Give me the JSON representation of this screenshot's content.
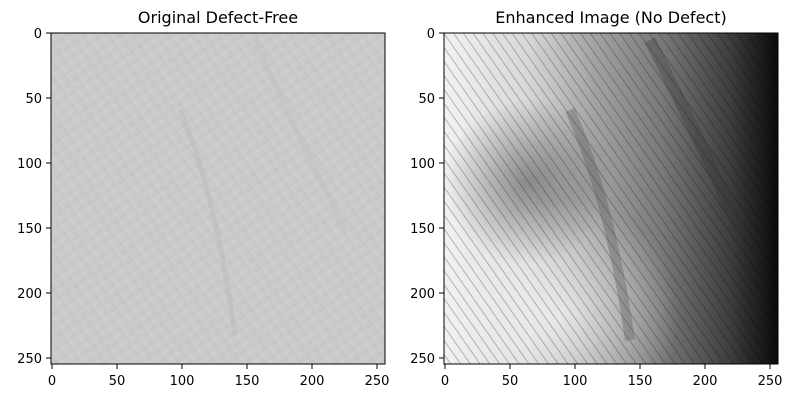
{
  "figure": {
    "panels": [
      {
        "title": "Original Defect-Free",
        "x_ticks": [
          "0",
          "50",
          "100",
          "150",
          "200",
          "250"
        ],
        "y_ticks": [
          "0",
          "50",
          "100",
          "150",
          "200",
          "250"
        ],
        "axis_range": [
          0,
          256
        ],
        "rendering": "low-contrast grayscale fabric texture with faint diagonal wrinkle"
      },
      {
        "title": "Enhanced Image (No Defect)",
        "x_ticks": [
          "0",
          "50",
          "100",
          "150",
          "200",
          "250"
        ],
        "y_ticks": [
          "0",
          "50",
          "100",
          "150",
          "200",
          "250"
        ],
        "axis_range": [
          0,
          256
        ],
        "rendering": "contrast-enhanced grayscale fabric texture, bright left, dark right edge"
      }
    ]
  }
}
